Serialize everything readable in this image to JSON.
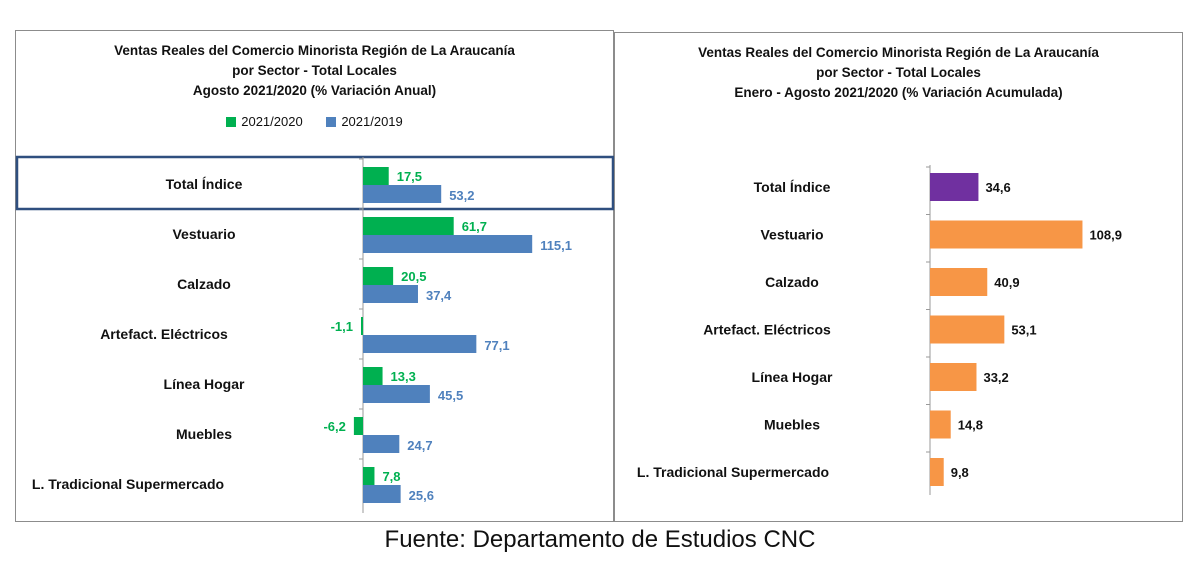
{
  "colors": {
    "series_2021_2020": "#00b050",
    "series_2021_2019": "#4f81bd",
    "total_highlight": "#7030a0",
    "right_bars": "#f79646",
    "highlight_frame": "#2f4f7f"
  },
  "source": "Fuente: Departamento de Estudios CNC",
  "chart_data": [
    {
      "type": "bar",
      "orientation": "horizontal",
      "title": [
        "Ventas Reales del Comercio Minorista  Región de La Araucanía",
        "por Sector  - Total Locales",
        "Agosto 2021/2020 (% Variación Anual)"
      ],
      "legend": {
        "placement": "top",
        "entries": [
          "2021/2020",
          "2021/2019"
        ]
      },
      "categories": [
        "Total Índice",
        "Vestuario",
        "Calzado",
        "Artefact. Eléctricos",
        "Línea Hogar",
        "Muebles",
        "L. Tradicional Supermercado"
      ],
      "series": [
        {
          "name": "2021/2020",
          "values": [
            17.5,
            61.7,
            20.5,
            -1.1,
            13.3,
            -6.2,
            7.8
          ],
          "labels": [
            "17,5",
            "61,7",
            "20,5",
            "-1,1",
            "13,3",
            "-6,2",
            "7,8"
          ]
        },
        {
          "name": "2021/2019",
          "values": [
            53.2,
            115.1,
            37.4,
            77.1,
            45.5,
            24.7,
            25.6
          ],
          "labels": [
            "53,2",
            "115,1",
            "37,4",
            "77,1",
            "45,5",
            "24,7",
            "25,6"
          ]
        }
      ],
      "highlighted_category": "Total Índice"
    },
    {
      "type": "bar",
      "orientation": "horizontal",
      "title": [
        "Ventas Reales del Comercio Minorista Región de La Araucanía",
        "por Sector - Total Locales",
        "Enero - Agosto 2021/2020 (% Variación Acumulada)"
      ],
      "categories": [
        "Total Índice",
        "Vestuario",
        "Calzado",
        "Artefact. Eléctricos",
        "Línea Hogar",
        "Muebles",
        "L. Tradicional Supermercado"
      ],
      "values": [
        34.6,
        108.9,
        40.9,
        53.1,
        33.2,
        14.8,
        9.8
      ],
      "labels": [
        "34,6",
        "108,9",
        "40,9",
        "53,1",
        "33,2",
        "14,8",
        "9,8"
      ],
      "highlighted_category": "Total Índice"
    }
  ]
}
